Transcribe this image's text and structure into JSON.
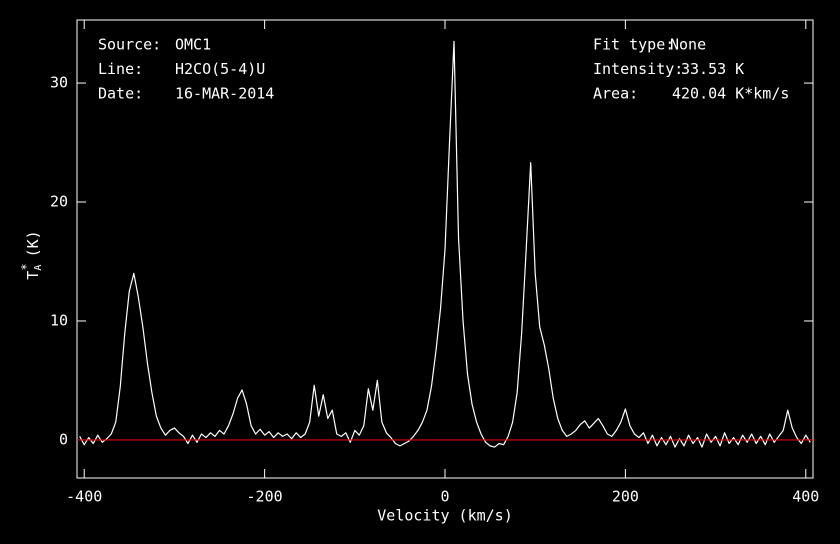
{
  "chart_data": {
    "type": "line",
    "info_left": [
      [
        "Source:",
        "OMC1"
      ],
      [
        "Line:",
        "H2CO(5-4)U"
      ],
      [
        "Date:",
        "16-MAR-2014"
      ]
    ],
    "info_right": [
      [
        "Fit type:",
        "None"
      ],
      [
        "Intensity:",
        "33.53 K"
      ],
      [
        "Area:",
        "420.04 K*km/s"
      ]
    ],
    "x_label": "Velocity (km/s)",
    "y_label": {
      "symbol": "T",
      "subscript": "A",
      "superscript": "*",
      "unit": "(K)"
    },
    "xlim": [
      -408,
      408
    ],
    "ylim": [
      -3.2,
      35.3
    ],
    "xticks": [
      -400,
      -200,
      0,
      200,
      400
    ],
    "yticks": [
      0,
      10,
      20,
      30
    ],
    "baseline": 0,
    "baseline_color": "#e00000",
    "x": [
      -405,
      -400,
      -395,
      -390,
      -385,
      -380,
      -375,
      -370,
      -365,
      -360,
      -355,
      -350,
      -345,
      -340,
      -335,
      -330,
      -325,
      -320,
      -315,
      -310,
      -305,
      -300,
      -295,
      -290,
      -285,
      -280,
      -275,
      -270,
      -265,
      -260,
      -255,
      -250,
      -245,
      -240,
      -235,
      -230,
      -225,
      -220,
      -215,
      -210,
      -205,
      -200,
      -195,
      -190,
      -185,
      -180,
      -175,
      -170,
      -165,
      -160,
      -155,
      -150,
      -145,
      -140,
      -135,
      -130,
      -125,
      -120,
      -115,
      -110,
      -105,
      -100,
      -95,
      -90,
      -85,
      -80,
      -75,
      -70,
      -65,
      -60,
      -55,
      -50,
      -45,
      -40,
      -35,
      -30,
      -25,
      -20,
      -15,
      -10,
      -5,
      0,
      5,
      10,
      15,
      20,
      25,
      30,
      35,
      40,
      45,
      50,
      55,
      60,
      65,
      70,
      75,
      80,
      85,
      90,
      95,
      100,
      105,
      110,
      115,
      120,
      125,
      130,
      135,
      140,
      145,
      150,
      155,
      160,
      165,
      170,
      175,
      180,
      185,
      190,
      195,
      200,
      205,
      210,
      215,
      220,
      225,
      230,
      235,
      240,
      245,
      250,
      255,
      260,
      265,
      270,
      275,
      280,
      285,
      290,
      295,
      300,
      305,
      310,
      315,
      320,
      325,
      330,
      335,
      340,
      345,
      350,
      355,
      360,
      365,
      370,
      375,
      380,
      385,
      390,
      395,
      400,
      405
    ],
    "series": [
      {
        "color": "#ffffff",
        "values": [
          0.3,
          -0.4,
          0.2,
          -0.3,
          0.4,
          -0.2,
          0.1,
          0.5,
          1.5,
          4.5,
          9,
          12.5,
          14,
          12,
          9.5,
          6.5,
          4,
          2,
          1,
          0.4,
          0.8,
          1,
          0.6,
          0.3,
          -0.3,
          0.4,
          -0.2,
          0.5,
          0.2,
          0.6,
          0.3,
          0.8,
          0.5,
          1.2,
          2.2,
          3.5,
          4.2,
          3,
          1.2,
          0.5,
          0.9,
          0.4,
          0.7,
          0.2,
          0.6,
          0.3,
          0.5,
          0.1,
          0.6,
          0.2,
          0.5,
          1.5,
          4.6,
          2,
          3.8,
          1.8,
          2.5,
          0.5,
          0.3,
          0.6,
          -0.2,
          0.8,
          0.4,
          1.2,
          4.3,
          2.5,
          5,
          1.5,
          0.6,
          0.2,
          -0.3,
          -0.5,
          -0.3,
          -0.1,
          0.3,
          0.8,
          1.5,
          2.5,
          4.5,
          7.5,
          11,
          16,
          25,
          33.5,
          17,
          10,
          5.5,
          3,
          1.5,
          0.5,
          -0.2,
          -0.5,
          -0.6,
          -0.3,
          -0.4,
          0.3,
          1.5,
          4,
          9,
          16,
          23.3,
          14,
          9.5,
          8,
          6,
          3.5,
          1.8,
          0.8,
          0.3,
          0.5,
          0.8,
          1.3,
          1.6,
          1,
          1.4,
          1.8,
          1.2,
          0.5,
          0.3,
          0.8,
          1.5,
          2.6,
          1.2,
          0.5,
          0.2,
          0.6,
          -0.3,
          0.4,
          -0.5,
          0.2,
          -0.4,
          0.3,
          -0.6,
          0.1,
          -0.5,
          0.4,
          -0.3,
          0.2,
          -0.6,
          0.5,
          -0.2,
          0.3,
          -0.5,
          0.6,
          -0.3,
          0.2,
          -0.4,
          0.4,
          -0.2,
          0.5,
          -0.3,
          0.3,
          -0.4,
          0.5,
          -0.2,
          0.3,
          0.8,
          2.5,
          1,
          0.2,
          -0.3,
          0.4,
          -0.2
        ]
      }
    ]
  }
}
